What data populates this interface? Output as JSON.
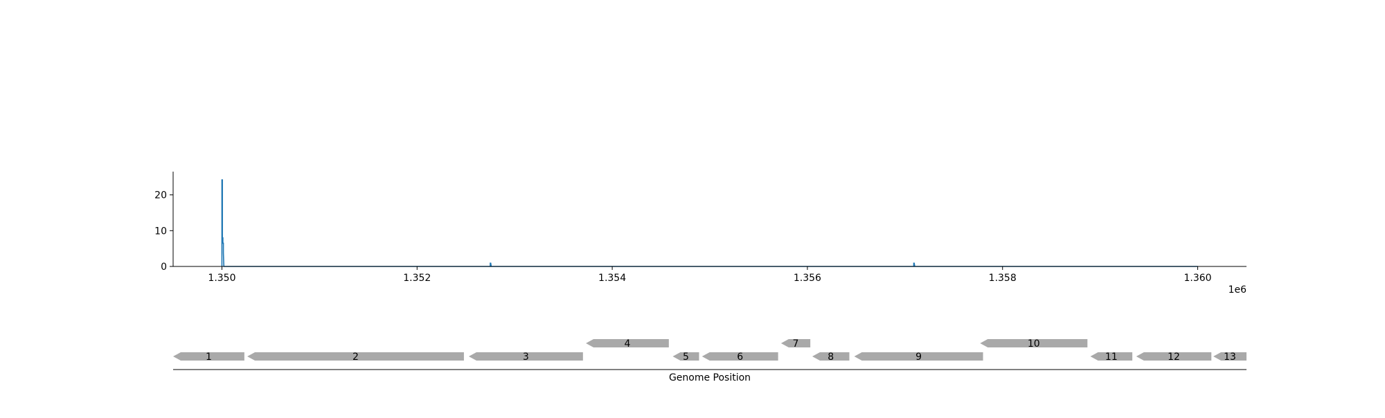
{
  "chart_data": [
    {
      "type": "line",
      "title": "",
      "xlabel": "",
      "ylabel": "",
      "x_offset_label": "1e6",
      "xlim": [
        1349500,
        1360500
      ],
      "ylim": [
        0,
        26.5
      ],
      "xticks": [
        1350000,
        1352000,
        1354000,
        1356000,
        1358000,
        1360000
      ],
      "xtick_labels": [
        "1.350",
        "1.352",
        "1.354",
        "1.356",
        "1.358",
        "1.360"
      ],
      "yticks": [
        0,
        10,
        20
      ],
      "ytick_labels": [
        "0",
        "10",
        "20"
      ],
      "grid": false,
      "line_color": "#1f77b4",
      "series": [
        {
          "x": [
            1350000,
            1350000,
            1350005,
            1350005,
            1350010,
            1350010,
            1350015,
            1350015,
            1350020,
            1350025,
            1350030,
            1352750,
            1352750,
            1352755,
            1352760,
            1357090,
            1357090,
            1357095,
            1357100,
            1360000
          ],
          "y": [
            0,
            24.2,
            24.2,
            8,
            8,
            6.5,
            6.5,
            3.8,
            0,
            0,
            0,
            0,
            0.9,
            0.9,
            0,
            0,
            0.9,
            0.9,
            0,
            0
          ]
        }
      ]
    },
    {
      "type": "gene_track",
      "xlabel": "Genome Position",
      "xlim": [
        1349500,
        1360500
      ],
      "feature_color": "#a9a9a9",
      "genes": [
        {
          "label": "1",
          "start": 1349500,
          "end": 1350230,
          "strand": "-",
          "row": 0
        },
        {
          "label": "2",
          "start": 1350260,
          "end": 1352480,
          "strand": "-",
          "row": 0
        },
        {
          "label": "3",
          "start": 1352530,
          "end": 1353700,
          "strand": "-",
          "row": 0
        },
        {
          "label": "4",
          "start": 1353730,
          "end": 1354580,
          "strand": "-",
          "row": 1
        },
        {
          "label": "5",
          "start": 1354620,
          "end": 1354890,
          "strand": "-",
          "row": 0
        },
        {
          "label": "6",
          "start": 1354920,
          "end": 1355700,
          "strand": "-",
          "row": 0
        },
        {
          "label": "7",
          "start": 1355730,
          "end": 1356030,
          "strand": "-",
          "row": 1
        },
        {
          "label": "8",
          "start": 1356050,
          "end": 1356430,
          "strand": "-",
          "row": 0
        },
        {
          "label": "9",
          "start": 1356480,
          "end": 1357800,
          "strand": "-",
          "row": 0
        },
        {
          "label": "10",
          "start": 1357770,
          "end": 1358870,
          "strand": "-",
          "row": 1
        },
        {
          "label": "11",
          "start": 1358900,
          "end": 1359330,
          "strand": "-",
          "row": 0
        },
        {
          "label": "12",
          "start": 1359370,
          "end": 1360140,
          "strand": "-",
          "row": 0
        },
        {
          "label": "13",
          "start": 1360160,
          "end": 1360500,
          "strand": "-",
          "row": 0
        }
      ]
    }
  ]
}
